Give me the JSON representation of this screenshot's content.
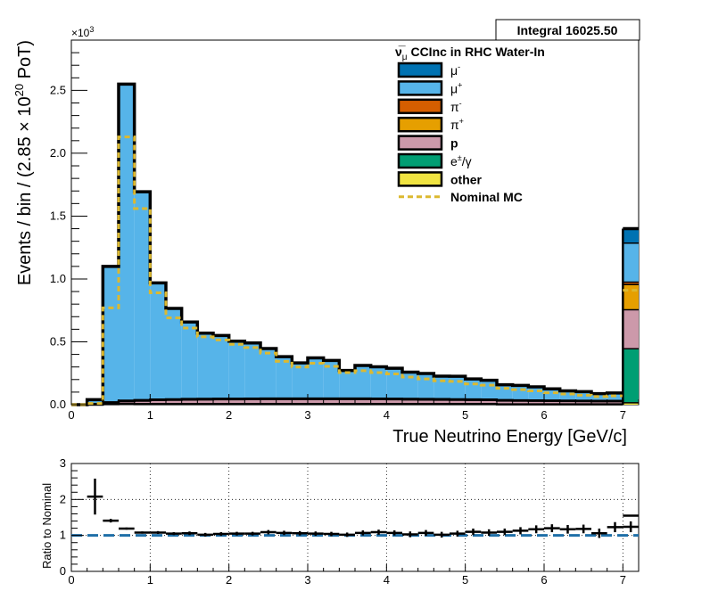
{
  "integral_label": "Integral 16025.50",
  "chart_data": [
    {
      "type": "bar",
      "stacked": true,
      "title": "",
      "xlabel": "True Neutrino Energy [GeV/c]",
      "ylabel": "Events / bin / (2.85  × 10^20 PoT)",
      "ylabel_parts": {
        "main": "Events / bin / (2.85  × 10",
        "exp": "20",
        "tail": " PoT)"
      },
      "y_multiplier": "×10",
      "y_multiplier_exp": "3",
      "xlim": [
        0,
        7.2
      ],
      "ylim": [
        0,
        2900
      ],
      "xticks": [
        0,
        1,
        2,
        3,
        4,
        5,
        6,
        7
      ],
      "yticks": [
        0,
        500,
        1000,
        1500,
        2000,
        2500
      ],
      "ytick_labels": [
        "0.0",
        "0.5",
        "1.0",
        "1.5",
        "2.0",
        "2.5"
      ],
      "bin_edges": [
        0.0,
        0.2,
        0.4,
        0.6,
        0.8,
        1.0,
        1.2,
        1.4,
        1.6,
        1.8,
        2.0,
        2.2,
        2.4,
        2.6,
        2.8,
        3.0,
        3.2,
        3.4,
        3.6,
        3.8,
        4.0,
        4.2,
        4.4,
        4.6,
        4.8,
        5.0,
        5.2,
        5.4,
        5.6,
        5.8,
        6.0,
        6.2,
        6.4,
        6.6,
        6.8,
        7.0
      ],
      "overflow_bin": [
        7.0,
        7.2
      ],
      "legend": {
        "title_main": "ν̅",
        "title_sub": "μ",
        "title_rest": " CCInc in RHC Water-In",
        "placement": "top-right"
      },
      "series": [
        {
          "name": "other",
          "color": "#f0e442",
          "values": [
            0,
            0,
            3,
            4,
            3,
            3,
            3,
            3,
            3,
            3,
            3,
            3,
            3,
            3,
            3,
            3,
            3,
            3,
            3,
            3,
            3,
            3,
            3,
            3,
            3,
            3,
            3,
            2,
            2,
            2,
            2,
            2,
            2,
            2,
            2
          ],
          "overflow": 15
        },
        {
          "name": "e±/γ",
          "color": "#009e73",
          "label_main": "e",
          "label_sup": "±",
          "label_tail": "/γ",
          "values": [
            0,
            0,
            3,
            3,
            3,
            3,
            3,
            3,
            3,
            3,
            3,
            3,
            3,
            3,
            3,
            3,
            3,
            3,
            3,
            3,
            3,
            3,
            3,
            3,
            3,
            3,
            3,
            2,
            2,
            2,
            2,
            2,
            2,
            2,
            2
          ],
          "overflow": 430
        },
        {
          "name": "p",
          "color": "#cc99aa",
          "values": [
            0,
            5,
            10,
            20,
            25,
            30,
            32,
            34,
            35,
            36,
            36,
            37,
            38,
            38,
            38,
            38,
            38,
            38,
            38,
            37,
            36,
            35,
            34,
            33,
            32,
            31,
            30,
            28,
            27,
            26,
            25,
            24,
            23,
            22,
            22
          ],
          "overflow": 310
        },
        {
          "name": "π+",
          "color": "#e69f00",
          "label_main": "π",
          "label_sup": "+",
          "values": [
            0,
            0,
            2,
            2,
            2,
            2,
            2,
            2,
            2,
            2,
            2,
            2,
            2,
            2,
            2,
            2,
            2,
            2,
            2,
            2,
            2,
            2,
            2,
            2,
            2,
            2,
            2,
            2,
            2,
            2,
            2,
            2,
            2,
            2,
            2
          ],
          "overflow": 200
        },
        {
          "name": "π-",
          "color": "#d55e00",
          "label_main": "π",
          "label_sup": "-",
          "values": [
            0,
            0,
            2,
            4,
            4,
            4,
            4,
            4,
            4,
            4,
            4,
            4,
            4,
            4,
            4,
            4,
            4,
            4,
            4,
            4,
            4,
            4,
            4,
            4,
            4,
            4,
            4,
            3,
            3,
            3,
            3,
            3,
            3,
            3,
            3
          ],
          "overflow": 20
        },
        {
          "name": "μ+",
          "color": "#56b4e9",
          "label_main": "μ",
          "label_sup": "+",
          "values": [
            0,
            35,
            1080,
            2515,
            1655,
            925,
            720,
            610,
            520,
            500,
            455,
            440,
            395,
            330,
            280,
            320,
            300,
            220,
            260,
            250,
            240,
            210,
            200,
            180,
            180,
            160,
            150,
            120,
            115,
            105,
            90,
            75,
            70,
            55,
            60
          ],
          "overflow": 310
        },
        {
          "name": "μ-",
          "color": "#0072b2",
          "label_main": "μ",
          "label_sup": "-",
          "values": [
            0,
            0,
            0,
            2,
            2,
            2,
            2,
            2,
            2,
            2,
            2,
            2,
            2,
            2,
            2,
            2,
            2,
            2,
            2,
            2,
            2,
            2,
            2,
            2,
            2,
            2,
            2,
            2,
            2,
            2,
            2,
            2,
            2,
            2,
            2
          ],
          "overflow": 115
        }
      ],
      "nominal": {
        "name": "Nominal MC",
        "color": "#dcb930",
        "values": [
          0,
          10,
          770,
          2130,
          1560,
          890,
          690,
          610,
          540,
          515,
          480,
          455,
          410,
          345,
          300,
          330,
          305,
          255,
          270,
          255,
          245,
          220,
          205,
          190,
          185,
          165,
          155,
          130,
          120,
          110,
          95,
          85,
          75,
          65,
          70
        ],
        "overflow": 910
      }
    },
    {
      "type": "scatter",
      "title": "",
      "xlabel": "",
      "ylabel": "Ratio to Nominal",
      "xlim": [
        0,
        7.2
      ],
      "ylim": [
        0,
        3
      ],
      "xticks": [
        0,
        1,
        2,
        3,
        4,
        5,
        6,
        7
      ],
      "yticks": [
        0,
        1,
        2,
        3
      ],
      "ytick_labels": [
        "0",
        "1",
        "2",
        "3"
      ],
      "reference_line": 1.0,
      "grid": true,
      "x": [
        0.3,
        0.5,
        0.7,
        0.9,
        1.1,
        1.3,
        1.5,
        1.7,
        1.9,
        2.1,
        2.3,
        2.5,
        2.7,
        2.9,
        3.1,
        3.3,
        3.5,
        3.7,
        3.9,
        4.1,
        4.3,
        4.5,
        4.7,
        4.9,
        5.1,
        5.3,
        5.5,
        5.7,
        5.9,
        6.1,
        6.3,
        6.5,
        6.7,
        6.9,
        7.1
      ],
      "y": [
        2.08,
        1.41,
        1.19,
        1.08,
        1.08,
        1.05,
        1.06,
        1.02,
        1.04,
        1.05,
        1.05,
        1.09,
        1.07,
        1.06,
        1.05,
        1.04,
        1.02,
        1.07,
        1.09,
        1.07,
        1.03,
        1.07,
        1.02,
        1.05,
        1.1,
        1.08,
        1.1,
        1.13,
        1.17,
        1.2,
        1.17,
        1.18,
        1.06,
        1.23,
        1.24
      ],
      "yerr": [
        0.5,
        0.05,
        0.03,
        0.03,
        0.04,
        0.04,
        0.05,
        0.05,
        0.05,
        0.05,
        0.05,
        0.06,
        0.06,
        0.06,
        0.06,
        0.06,
        0.06,
        0.07,
        0.07,
        0.07,
        0.08,
        0.08,
        0.08,
        0.08,
        0.09,
        0.09,
        0.09,
        0.1,
        0.11,
        0.11,
        0.12,
        0.12,
        0.13,
        0.14,
        0.15
      ],
      "overflow_y": 1.55
    }
  ]
}
